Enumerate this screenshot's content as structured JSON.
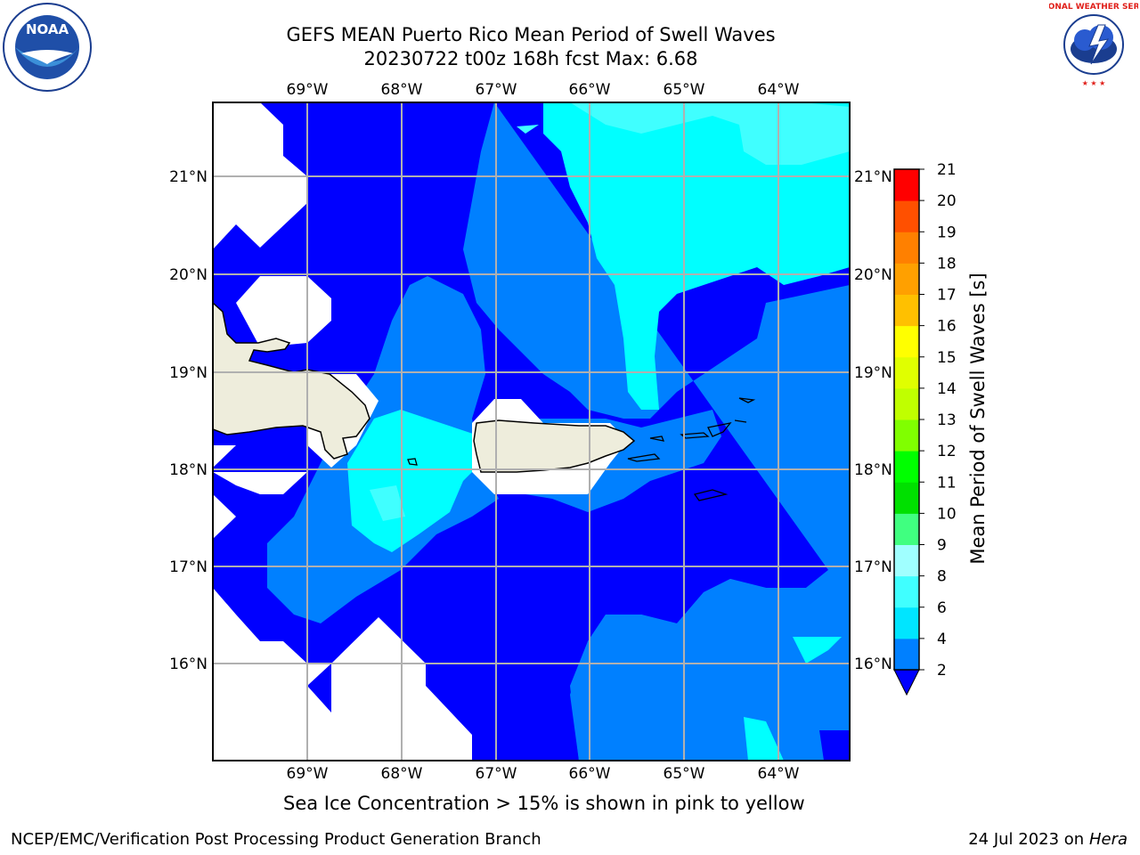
{
  "title_line1": "GEFS MEAN Puerto Rico Mean Period of Swell Waves",
  "title_line2": "20230722 t00z 168h fcst   Max: 6.68",
  "lon_labels": [
    "69°W",
    "68°W",
    "67°W",
    "66°W",
    "65°W",
    "64°W"
  ],
  "lat_labels": [
    "21°N",
    "20°N",
    "19°N",
    "18°N",
    "17°N",
    "16°N"
  ],
  "colorbar": {
    "label": "Mean Period of Swell Waves [s]",
    "ticks": [
      "2",
      "4",
      "6",
      "8",
      "9",
      "10",
      "11",
      "12",
      "13",
      "14",
      "15",
      "16",
      "17",
      "18",
      "19",
      "20",
      "21"
    ],
    "colors": [
      "#0080ff",
      "#00e5ff",
      "#40ffff",
      "#80ffff",
      "#b0ffff",
      "#40ff80",
      "#00e000",
      "#00ff00",
      "#80ff00",
      "#c0ff00",
      "#e0ff00",
      "#ffff00",
      "#ffd000",
      "#ffa000",
      "#ff8000",
      "#ff5000",
      "#ff2000",
      "#ff0000"
    ],
    "under_color": "#0000ff"
  },
  "map_colors": {
    "level_2_4": "#0000ff",
    "level_4_6": "#0080ff",
    "level_6_8": "#00ffff",
    "level_8_9": "#40ffff",
    "land": "#eeeddc",
    "no_data": "#ffffff",
    "grid": "#b0b0b0"
  },
  "note": "Sea Ice Concentration > 15% is shown in pink to yellow",
  "footer_left": "NCEP/EMC/Verification Post Processing Product Generation Branch",
  "footer_date": "24 Jul 2023 on ",
  "footer_machine": "Hera",
  "logo_left_text": "NOAA",
  "logo_right_text": "NATIONAL WEATHER SERVICE"
}
